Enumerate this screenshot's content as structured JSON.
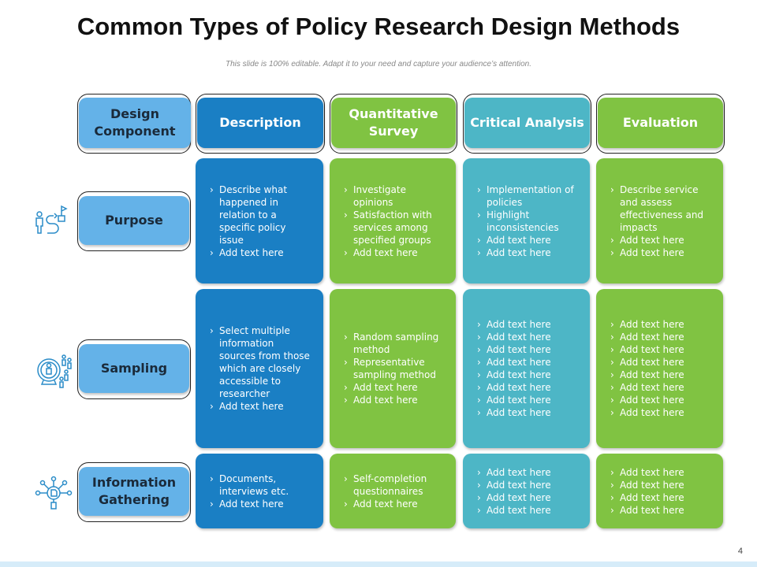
{
  "title": "Common Types of Policy Research Design Methods",
  "subtitle": "This slide is 100% editable. Adapt it to your need and capture your audience’s attention.",
  "page_number": "4",
  "colors": {
    "description": "#1a7fc4",
    "quantitative": "#80c342",
    "critical": "#4db6c6",
    "evaluation": "#80c342",
    "component": "#64b2e8"
  },
  "headers": [
    "Design Component",
    "Description",
    "Quantitative Survey",
    "Critical Analysis",
    "Evaluation"
  ],
  "rows": [
    {
      "label": "Purpose",
      "icon": "person-path-flag-icon",
      "cells": [
        [
          "Describe what happened in relation to a specific policy issue",
          "Add text here"
        ],
        [
          "Investigate opinions",
          "Satisfaction with services among specified groups",
          "Add text here"
        ],
        [
          "Implementation of policies",
          "Highlight inconsistencies",
          "Add text here",
          "Add text here"
        ],
        [
          "Describe service and assess effectiveness and impacts",
          "Add text here",
          "Add text here"
        ]
      ]
    },
    {
      "label": "Sampling",
      "icon": "magnifier-people-icon",
      "cells": [
        [
          "Select multiple information sources from those which are closely accessible to researcher",
          "Add text here"
        ],
        [
          "Random sampling method",
          "Representative sampling method",
          "Add text here",
          "Add text here"
        ],
        [
          "Add text here",
          "Add text here",
          "Add text here",
          "Add text here",
          "Add text here",
          "Add text here",
          "Add text here",
          "Add text here"
        ],
        [
          "Add text here",
          "Add text here",
          "Add text here",
          "Add text here",
          "Add text here",
          "Add text here",
          "Add text here",
          "Add text here"
        ]
      ]
    },
    {
      "label": "Information Gathering",
      "icon": "document-network-icon",
      "cells": [
        [
          "Documents, interviews etc.",
          "Add text here"
        ],
        [
          "Self-completion questionnaires",
          "Add text here"
        ],
        [
          "Add text here",
          "Add text here",
          "Add text here",
          "Add text here"
        ],
        [
          "Add text here",
          "Add text here",
          "Add text here",
          "Add text here"
        ]
      ]
    }
  ]
}
